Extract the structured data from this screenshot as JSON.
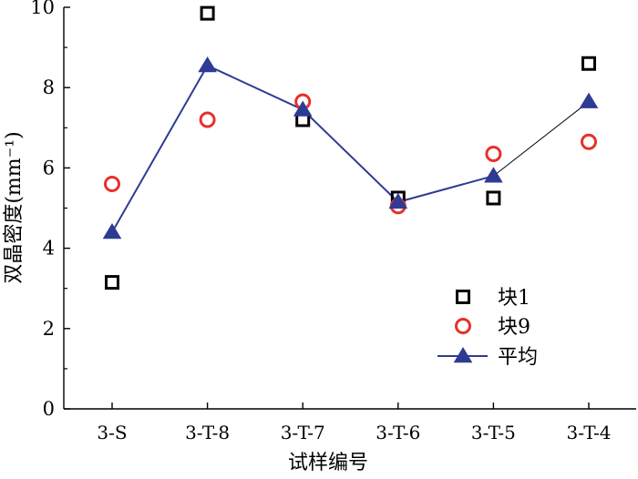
{
  "chart_data": {
    "type": "scatter",
    "categories": [
      "3-S",
      "3-T-8",
      "3-T-7",
      "3-T-6",
      "3-T-5",
      "3-T-4"
    ],
    "series": [
      {
        "name": "块1",
        "marker": "square",
        "color": "#000000",
        "values": [
          3.15,
          9.85,
          7.2,
          5.25,
          5.25,
          8.6
        ]
      },
      {
        "name": "块9",
        "marker": "circle",
        "color": "#e8302a",
        "values": [
          5.6,
          7.2,
          7.65,
          5.05,
          6.35,
          6.65
        ]
      },
      {
        "name": "平均",
        "marker": "triangle",
        "color": "#2e3b93",
        "line": true,
        "values": [
          4.4,
          8.55,
          7.45,
          5.15,
          5.8,
          7.65
        ]
      }
    ],
    "xlabel": "试样编号",
    "ylabel": "双晶密度(mm⁻¹)",
    "ylim": [
      0,
      10
    ],
    "yticks": [
      "0",
      "2",
      "4",
      "6",
      "8",
      "10"
    ],
    "legend": "center-right",
    "grid": false
  }
}
